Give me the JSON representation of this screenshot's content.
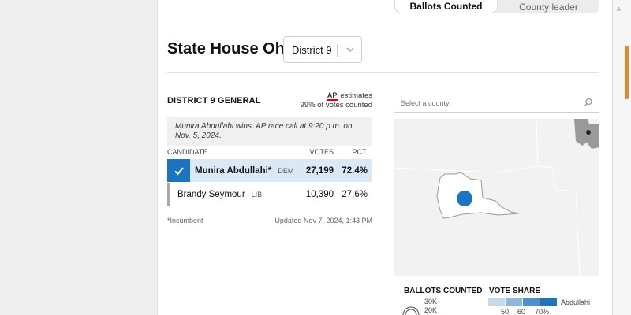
{
  "toggle": {
    "ballots": "Ballots Counted",
    "county": "County leader"
  },
  "page": {
    "title": "State House Ohio"
  },
  "district_select": {
    "value": "District 9"
  },
  "race": {
    "label": "DISTRICT 9 GENERAL",
    "ap_logo": "AP",
    "ap_estimates": "estimates",
    "votes_counted": "99% of votes counted",
    "callout": "Munira Abdullahi wins. AP race call at 9:20 p.m. on Nov. 5, 2024.",
    "columns": {
      "candidate": "CANDIDATE",
      "votes": "VOTES",
      "pct": "PCT."
    },
    "candidates": [
      {
        "name": "Munira Abdullahi*",
        "party": "DEM",
        "votes": "27,199",
        "pct": "72.4%"
      },
      {
        "name": "Brandy Seymour",
        "party": "LIB",
        "votes": "10,390",
        "pct": "27.6%"
      }
    ],
    "incumbent_note": "*Incumbent",
    "updated": "Updated Nov 7, 2024, 1:43 PM"
  },
  "map": {
    "search_placeholder": "Select a county",
    "legend": {
      "ballots_title": "BALLOTS COUNTED",
      "ballots_30k": "30K",
      "ballots_20k": "20K",
      "share_title": "VOTE SHARE",
      "share_candidate": "Abdullahi",
      "share_ticks": [
        "50",
        "60",
        "70%"
      ]
    }
  },
  "colors": {
    "accent": "#1a74c2",
    "win_row": "#dbe9f7",
    "lose_bar": "#a8a8a8",
    "scroll_marker": "#e8882a"
  },
  "icons": {
    "check": "check-icon",
    "chevron": "chevron-down-icon",
    "search": "search-icon"
  }
}
